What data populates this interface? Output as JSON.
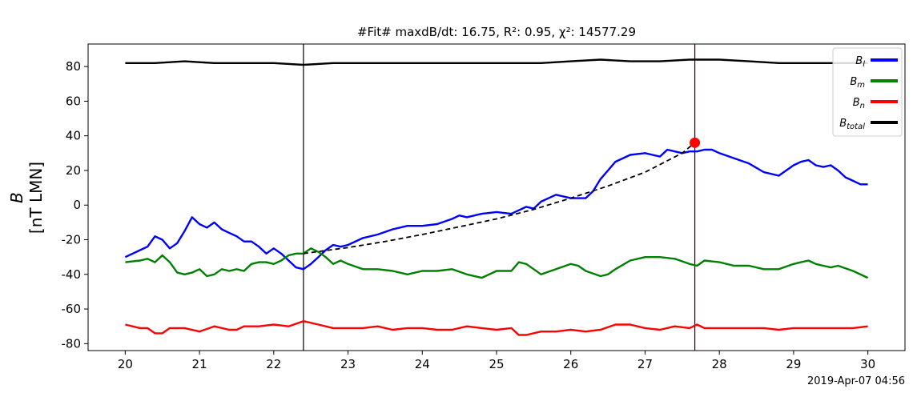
{
  "chart_data": {
    "type": "line",
    "title_text": "#Fit# maxdB/dt: 16.75, R²: 0.95, χ²: 14577.29",
    "ylabel_symbol": "B",
    "ylabel_units": "[nT LMN]",
    "timestamp": "2019-Apr-07 04:56",
    "xlim": [
      19.5,
      30.5
    ],
    "ylim": [
      -84,
      93
    ],
    "x_ticks": [
      20,
      21,
      22,
      23,
      24,
      25,
      26,
      27,
      28,
      29,
      30
    ],
    "y_ticks": [
      -80,
      -60,
      -40,
      -20,
      0,
      20,
      40,
      60,
      80
    ],
    "legend_placement": "top-right",
    "grid": false,
    "vertical_lines": [
      22.4,
      27.67
    ],
    "fit_marker": {
      "x": 27.67,
      "y": 36
    },
    "series": [
      {
        "name": "B_l",
        "legend_main": "B",
        "legend_sub": "l",
        "color": "#0000ff",
        "x": [
          20.0,
          20.2,
          20.3,
          20.4,
          20.5,
          20.6,
          20.7,
          20.8,
          20.9,
          21.0,
          21.1,
          21.2,
          21.3,
          21.4,
          21.5,
          21.6,
          21.7,
          21.8,
          21.9,
          22.0,
          22.1,
          22.2,
          22.3,
          22.4,
          22.5,
          22.6,
          22.7,
          22.8,
          22.9,
          23.0,
          23.2,
          23.4,
          23.6,
          23.8,
          24.0,
          24.2,
          24.4,
          24.5,
          24.6,
          24.8,
          25.0,
          25.2,
          25.3,
          25.4,
          25.5,
          25.6,
          25.8,
          26.0,
          26.2,
          26.3,
          26.4,
          26.5,
          26.6,
          26.8,
          27.0,
          27.1,
          27.2,
          27.3,
          27.4,
          27.5,
          27.6,
          27.7,
          27.8,
          27.9,
          28.0,
          28.2,
          28.4,
          28.6,
          28.8,
          28.9,
          29.0,
          29.1,
          29.2,
          29.3,
          29.4,
          29.5,
          29.6,
          29.7,
          29.8,
          29.9,
          30.0
        ],
        "values": [
          -30,
          -26,
          -24,
          -18,
          -20,
          -25,
          -22,
          -15,
          -7,
          -11,
          -13,
          -10,
          -14,
          -16,
          -18,
          -21,
          -21,
          -24,
          -28,
          -25,
          -28,
          -32,
          -36,
          -37,
          -34,
          -30,
          -26,
          -23,
          -24,
          -23,
          -19,
          -17,
          -14,
          -12,
          -12,
          -11,
          -8,
          -6,
          -7,
          -5,
          -4,
          -5,
          -3,
          -1,
          -2,
          2,
          6,
          4,
          4,
          8,
          15,
          20,
          25,
          29,
          30,
          29,
          28,
          32,
          31,
          30,
          31,
          31,
          32,
          32,
          30,
          27,
          24,
          19,
          17,
          20,
          23,
          25,
          26,
          23,
          22,
          23,
          20,
          16,
          14,
          12,
          12
        ]
      },
      {
        "name": "B_m",
        "legend_main": "B",
        "legend_sub": "m",
        "color": "#008000",
        "x": [
          20.0,
          20.2,
          20.3,
          20.4,
          20.5,
          20.6,
          20.7,
          20.8,
          20.9,
          21.0,
          21.1,
          21.2,
          21.3,
          21.4,
          21.5,
          21.6,
          21.7,
          21.8,
          21.9,
          22.0,
          22.1,
          22.2,
          22.3,
          22.4,
          22.5,
          22.6,
          22.7,
          22.8,
          22.9,
          23.0,
          23.2,
          23.4,
          23.6,
          23.8,
          24.0,
          24.2,
          24.4,
          24.6,
          24.8,
          25.0,
          25.2,
          25.3,
          25.4,
          25.5,
          25.6,
          25.8,
          26.0,
          26.1,
          26.2,
          26.4,
          26.5,
          26.6,
          26.8,
          27.0,
          27.2,
          27.4,
          27.6,
          27.7,
          27.8,
          28.0,
          28.2,
          28.4,
          28.6,
          28.8,
          29.0,
          29.1,
          29.2,
          29.3,
          29.4,
          29.5,
          29.6,
          29.8,
          30.0
        ],
        "values": [
          -33,
          -32,
          -31,
          -33,
          -29,
          -33,
          -39,
          -40,
          -39,
          -37,
          -41,
          -40,
          -37,
          -38,
          -37,
          -38,
          -34,
          -33,
          -33,
          -34,
          -32,
          -29,
          -28,
          -28,
          -25,
          -27,
          -30,
          -34,
          -32,
          -34,
          -37,
          -37,
          -38,
          -40,
          -38,
          -38,
          -37,
          -40,
          -42,
          -38,
          -38,
          -33,
          -34,
          -37,
          -40,
          -37,
          -34,
          -35,
          -38,
          -41,
          -40,
          -37,
          -32,
          -30,
          -30,
          -31,
          -34,
          -35,
          -32,
          -33,
          -35,
          -35,
          -37,
          -37,
          -34,
          -33,
          -32,
          -34,
          -35,
          -36,
          -35,
          -38,
          -42
        ]
      },
      {
        "name": "B_n",
        "legend_main": "B",
        "legend_sub": "n",
        "color": "#ff0000",
        "x": [
          20.0,
          20.2,
          20.3,
          20.4,
          20.5,
          20.6,
          20.8,
          21.0,
          21.2,
          21.4,
          21.5,
          21.6,
          21.8,
          22.0,
          22.2,
          22.4,
          22.6,
          22.8,
          23.0,
          23.2,
          23.4,
          23.6,
          23.8,
          24.0,
          24.2,
          24.4,
          24.6,
          24.8,
          25.0,
          25.2,
          25.3,
          25.4,
          25.6,
          25.8,
          26.0,
          26.2,
          26.4,
          26.6,
          26.8,
          27.0,
          27.2,
          27.4,
          27.6,
          27.7,
          27.8,
          28.0,
          28.2,
          28.4,
          28.6,
          28.8,
          29.0,
          29.2,
          29.4,
          29.6,
          29.8,
          30.0
        ],
        "values": [
          -69,
          -71,
          -71,
          -74,
          -74,
          -71,
          -71,
          -73,
          -70,
          -72,
          -72,
          -70,
          -70,
          -69,
          -70,
          -67,
          -69,
          -71,
          -71,
          -71,
          -70,
          -72,
          -71,
          -71,
          -72,
          -72,
          -70,
          -71,
          -72,
          -71,
          -75,
          -75,
          -73,
          -73,
          -72,
          -73,
          -72,
          -69,
          -69,
          -71,
          -72,
          -70,
          -71,
          -69,
          -71,
          -71,
          -71,
          -71,
          -71,
          -72,
          -71,
          -71,
          -71,
          -71,
          -71,
          -70
        ]
      },
      {
        "name": "B_total",
        "legend_main": "B",
        "legend_sub": "total",
        "color": "#000000",
        "x": [
          20.0,
          20.4,
          20.8,
          21.2,
          21.6,
          22.0,
          22.4,
          22.8,
          23.2,
          23.6,
          24.0,
          24.4,
          24.8,
          25.2,
          25.6,
          26.0,
          26.4,
          26.8,
          27.2,
          27.6,
          28.0,
          28.4,
          28.8,
          29.2,
          29.6,
          30.0
        ],
        "values": [
          82,
          82,
          83,
          82,
          82,
          82,
          81,
          82,
          82,
          82,
          82,
          82,
          82,
          82,
          82,
          83,
          84,
          83,
          83,
          84,
          84,
          83,
          82,
          82,
          82,
          82
        ]
      },
      {
        "name": "fit",
        "color": "#000000",
        "dashed": true,
        "x": [
          22.4,
          23.0,
          23.5,
          24.0,
          24.5,
          25.0,
          25.5,
          26.0,
          26.5,
          27.0,
          27.5,
          27.67
        ],
        "values": [
          -28,
          -24.5,
          -21,
          -17,
          -12.5,
          -8,
          -2.5,
          4,
          11,
          19,
          30,
          36
        ]
      }
    ]
  }
}
